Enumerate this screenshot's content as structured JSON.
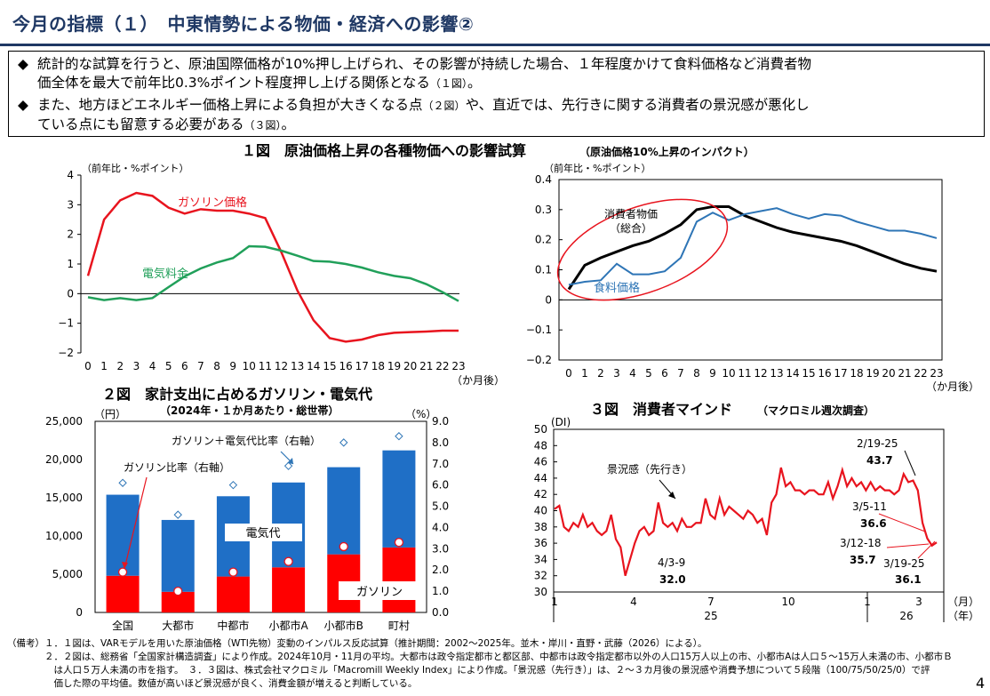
{
  "header": {
    "title": "今月の指標（１）　中東情勢による物価・経済への影響②"
  },
  "summary": {
    "bullet1_a": "統計的な試算を行うと、原油国際価格が10%押し上げられ、その影響が持続した場合、１年程度かけて食料価格など消費者物",
    "bullet1_b": "価全体を最大で前年比0.3%ポイント程度押し上げる関係となる",
    "bullet1_ref": "（１図）",
    "bullet1_end": "。",
    "bullet2_a": "また、地方ほどエネルギー価格上昇による負担が大きくなる点",
    "bullet2_ref1": "（２図）",
    "bullet2_b": "や、直近では、先行きに関する消費者の景況感が悪化し",
    "bullet2_c": "ている点にも留意する必要がある",
    "bullet2_ref2": "（３図）",
    "bullet2_end": "。",
    "diamond": "◆"
  },
  "fig1_title": "１図　原油価格上昇の各種物価への影響試算",
  "fig1_subtitle": "（原油価格10%上昇のインパクト）",
  "fig2_title": "２図　家計支出に占めるガソリン・電気代",
  "fig2_subtitle": "（2024年・１か月あたり・総世帯）",
  "fig3_title": "３図　消費者マインド",
  "fig3_subtitle": "（マクロミル週次調査）",
  "chart_data": [
    {
      "type": "line",
      "id": "fig1-left",
      "ylabel": "（前年比・%ポイント）",
      "xlabel": "（か月後）",
      "x": [
        0,
        1,
        2,
        3,
        4,
        5,
        6,
        7,
        8,
        9,
        10,
        11,
        12,
        13,
        14,
        15,
        16,
        17,
        18,
        19,
        20,
        21,
        22,
        23
      ],
      "ylim": [
        -2,
        4
      ],
      "yticks": [
        -2,
        -1,
        0,
        1,
        2,
        3,
        4
      ],
      "ytick_labels": [
        "−2",
        "−1",
        "0",
        "1",
        "2",
        "3",
        "4"
      ],
      "series": [
        {
          "name": "ガソリン価格",
          "color": "#e8141e",
          "values": [
            0.6,
            2.5,
            3.15,
            3.4,
            3.3,
            2.9,
            2.7,
            2.85,
            2.8,
            2.8,
            2.7,
            2.55,
            1.4,
            0.1,
            -0.9,
            -1.5,
            -1.62,
            -1.55,
            -1.4,
            -1.32,
            -1.3,
            -1.28,
            -1.25,
            -1.25
          ]
        },
        {
          "name": "電気料金",
          "color": "#21a05a",
          "values": [
            -0.12,
            -0.22,
            -0.15,
            -0.22,
            -0.15,
            0.22,
            0.58,
            0.85,
            1.05,
            1.2,
            1.6,
            1.58,
            1.45,
            1.28,
            1.1,
            1.08,
            1.0,
            0.88,
            0.72,
            0.6,
            0.52,
            0.32,
            0.05,
            -0.25
          ]
        }
      ]
    },
    {
      "type": "line",
      "id": "fig1-right",
      "ylabel": "（前年比・%ポイント）",
      "xlabel": "（か月後）",
      "x": [
        0,
        1,
        2,
        3,
        4,
        5,
        6,
        7,
        8,
        9,
        10,
        11,
        12,
        13,
        14,
        15,
        16,
        17,
        18,
        19,
        20,
        21,
        22,
        23
      ],
      "ylim": [
        -0.2,
        0.4
      ],
      "yticks": [
        -0.2,
        -0.1,
        0,
        0.1,
        0.2,
        0.3,
        0.4
      ],
      "ytick_labels": [
        "−0.2",
        "−0.1",
        "0",
        "0.1",
        "0.2",
        "0.3",
        "0.4"
      ],
      "series": [
        {
          "name": "消費者物価（総合）",
          "label_line1": "消費者物価",
          "label_line2": "（総合）",
          "color": "#000000",
          "values": [
            0.035,
            0.115,
            0.14,
            0.16,
            0.18,
            0.195,
            0.22,
            0.25,
            0.3,
            0.31,
            0.31,
            0.28,
            0.26,
            0.24,
            0.225,
            0.215,
            0.205,
            0.195,
            0.18,
            0.16,
            0.14,
            0.12,
            0.105,
            0.095
          ]
        },
        {
          "name": "食料価格",
          "color": "#2e75b6",
          "values": [
            0.05,
            0.06,
            0.065,
            0.12,
            0.085,
            0.085,
            0.095,
            0.14,
            0.26,
            0.29,
            0.265,
            0.285,
            0.295,
            0.305,
            0.285,
            0.27,
            0.285,
            0.28,
            0.26,
            0.245,
            0.23,
            0.23,
            0.22,
            0.205
          ]
        }
      ]
    },
    {
      "type": "bar",
      "id": "fig2",
      "ylabel": "（円）",
      "y2label": "（%）",
      "categories": [
        "全国",
        "大都市",
        "中都市",
        "小都市A",
        "小都市B",
        "町村"
      ],
      "ylim": [
        0,
        25000
      ],
      "yticks": [
        0,
        5000,
        10000,
        15000,
        20000,
        25000
      ],
      "ytick_labels": [
        "0",
        "5,000",
        "10,000",
        "15,000",
        "20,000",
        "25,000"
      ],
      "y2lim": [
        0,
        9
      ],
      "y2ticks": [
        0,
        1,
        2,
        3,
        4,
        5,
        6,
        7,
        8,
        9
      ],
      "y2tick_labels": [
        "0.0",
        "1.0",
        "2.0",
        "3.0",
        "4.0",
        "5.0",
        "6.0",
        "7.0",
        "8.0",
        "9.0"
      ],
      "series": [
        {
          "name": "ガソリン",
          "color": "#ff0000",
          "values": [
            4800,
            2700,
            4700,
            5900,
            7600,
            8500
          ]
        },
        {
          "name": "電気代",
          "color": "#1f6fc6",
          "values": [
            10600,
            9400,
            10500,
            11100,
            11400,
            12700
          ]
        },
        {
          "name": "ガソリン＋電気代比率（右軸）",
          "axis": "right",
          "marker": "diamond",
          "values": [
            6.1,
            4.6,
            6.0,
            6.9,
            8.0,
            8.3
          ]
        },
        {
          "name": "ガソリン比率（右軸）",
          "axis": "right",
          "marker": "circle",
          "values": [
            1.9,
            1.0,
            1.9,
            2.4,
            3.1,
            3.3
          ]
        }
      ]
    },
    {
      "type": "line",
      "id": "fig3",
      "ylabel": "(DI)",
      "ylim": [
        30,
        50
      ],
      "yticks": [
        30,
        32,
        34,
        36,
        38,
        40,
        42,
        44,
        46,
        48,
        50
      ],
      "ytick_labels": [
        "30",
        "32",
        "34",
        "36",
        "38",
        "40",
        "42",
        "44",
        "46",
        "48",
        "50"
      ],
      "x_month_labels": [
        "1",
        "4",
        "7",
        "10",
        "1",
        "3"
      ],
      "x_year_labels": [
        "25",
        "26"
      ],
      "x_unit1": "（月）",
      "x_unit2": "（年）",
      "series": [
        {
          "name": "景況感（先行き）",
          "color": "#e8141e",
          "values": [
            40.2,
            40.6,
            38.0,
            37.5,
            38.5,
            38.0,
            39.5,
            38.0,
            38.5,
            37.5,
            37.0,
            37.5,
            39.5,
            36.5,
            35.5,
            32.0,
            34.0,
            36.0,
            37.5,
            38.0,
            37.0,
            37.5,
            41.0,
            38.5,
            38.0,
            38.5,
            37.5,
            39.0,
            38.0,
            38.0,
            38.5,
            38.5,
            41.5,
            39.5,
            39.0,
            41.5,
            39.5,
            40.5,
            40.0,
            39.5,
            39.0,
            40.0,
            39.5,
            38.5,
            39.0,
            37.0,
            41.0,
            42.0,
            45.3,
            43.0,
            43.5,
            42.5,
            42.5,
            42.0,
            42.5,
            42.5,
            42.0,
            42.0,
            43.5,
            41.5,
            43.0,
            45.0,
            43.0,
            44.0,
            43.0,
            43.5,
            42.5,
            43.5,
            42.5,
            43.0,
            42.5,
            42.5,
            42.0,
            42.5,
            44.5,
            43.5,
            43.7,
            42.5,
            38.5,
            36.6,
            35.7,
            36.1
          ]
        }
      ],
      "annotations": [
        {
          "date": "4/3-9",
          "value": "32.0"
        },
        {
          "date": "2/19-25",
          "value": "43.7"
        },
        {
          "date": "3/5-11",
          "value": "36.6"
        },
        {
          "date": "3/12-18",
          "value": "35.7"
        },
        {
          "date": "3/19-25",
          "value": "36.1"
        }
      ]
    }
  ],
  "notes": {
    "line1": "（備考）１．１図は、VARモデルを用いた原油価格（WTI先物）変動のインパルス反応試算（推計期間：2002〜2025年。並木・岸川・直野・武藤（2026）による）。",
    "line2": "　　　　２．２図は、総務省「全国家計構造調査」により作成。2024年10月・11月の平均。大都市は政令指定都市と都区部、中都市は政令指定都市以外の人口15万人以上の市、小都市Aは人口５〜15万人未満の市、小都市Ｂ",
    "line3": "　　　　　は人口５万人未満の市を指す。　３．３図は、株式会社マクロミル「Macromill Weekly Index」により作成。「景況感（先行き）」は、２〜３カ月後の景況感や消費予想について５段階（100/75/50/25/0）で評",
    "line4": "　　　　　価した際の平均値。数値が高いほど景況感が良く、消費金額が増えると判断している。"
  },
  "page_number": "4"
}
